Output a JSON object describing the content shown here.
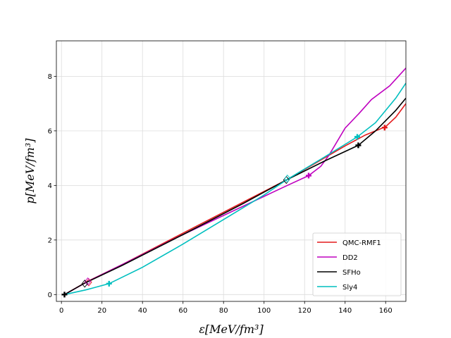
{
  "chart_data": {
    "type": "line",
    "xlabel": "ε[MeV/fm³]",
    "ylabel": "p[MeV/fm³]",
    "xlim": [
      -2.5,
      170
    ],
    "ylim": [
      -0.25,
      9.3
    ],
    "xticks": [
      0,
      20,
      40,
      60,
      80,
      100,
      120,
      140,
      160
    ],
    "yticks": [
      0,
      2,
      4,
      6,
      8
    ],
    "grid": true,
    "legend_position": "lower right",
    "series": [
      {
        "name": "QMC-RMF1",
        "color": "#e41a1c",
        "points": [
          [
            1.5,
            0.0
          ],
          [
            12,
            0.45
          ],
          [
            30,
            1.1
          ],
          [
            60,
            2.25
          ],
          [
            90,
            3.4
          ],
          [
            111,
            4.2
          ],
          [
            125,
            4.8
          ],
          [
            140,
            5.45
          ],
          [
            150,
            5.85
          ],
          [
            160,
            6.15
          ],
          [
            165,
            6.5
          ],
          [
            170,
            7.0
          ]
        ],
        "markers": [
          {
            "shape": "plus",
            "x": 159.5,
            "y": 6.12
          },
          {
            "shape": "diamond",
            "x": 13.5,
            "y": 0.45
          }
        ]
      },
      {
        "name": "DD2",
        "color": "#bf00bf",
        "points": [
          [
            1.5,
            0.0
          ],
          [
            13,
            0.48
          ],
          [
            30,
            1.1
          ],
          [
            60,
            2.2
          ],
          [
            90,
            3.25
          ],
          [
            110,
            3.95
          ],
          [
            122,
            4.36
          ],
          [
            128,
            4.7
          ],
          [
            132,
            5.1
          ],
          [
            140,
            6.1
          ],
          [
            147,
            6.65
          ],
          [
            153,
            7.15
          ],
          [
            162,
            7.65
          ],
          [
            170,
            8.3
          ]
        ],
        "markers": [
          {
            "shape": "plus",
            "x": 122,
            "y": 4.36
          },
          {
            "shape": "diamond",
            "x": 13,
            "y": 0.48
          }
        ]
      },
      {
        "name": "SFHo",
        "color": "#000000",
        "points": [
          [
            1.5,
            0.0
          ],
          [
            11,
            0.4
          ],
          [
            30,
            1.07
          ],
          [
            60,
            2.2
          ],
          [
            90,
            3.35
          ],
          [
            111,
            4.2
          ],
          [
            130,
            4.9
          ],
          [
            146.5,
            5.47
          ],
          [
            155,
            6.0
          ],
          [
            165,
            6.75
          ],
          [
            170,
            7.2
          ]
        ],
        "markers": [
          {
            "shape": "plus",
            "x": 146.5,
            "y": 5.47
          },
          {
            "shape": "plus",
            "x": 1.5,
            "y": 0.0
          },
          {
            "shape": "diamond",
            "x": 11.5,
            "y": 0.4
          },
          {
            "shape": "diamond",
            "x": 111,
            "y": 4.2
          }
        ]
      },
      {
        "name": "Sly4",
        "color": "#00bfbf",
        "points": [
          [
            1.5,
            0.0
          ],
          [
            12,
            0.17
          ],
          [
            23.5,
            0.4
          ],
          [
            40,
            1.0
          ],
          [
            60,
            1.85
          ],
          [
            80,
            2.75
          ],
          [
            100,
            3.65
          ],
          [
            111,
            4.2
          ],
          [
            130,
            5.05
          ],
          [
            146,
            5.78
          ],
          [
            155,
            6.3
          ],
          [
            165,
            7.2
          ],
          [
            170,
            7.75
          ]
        ],
        "markers": [
          {
            "shape": "plus",
            "x": 23.5,
            "y": 0.4
          },
          {
            "shape": "plus",
            "x": 146,
            "y": 5.78
          },
          {
            "shape": "diamond",
            "x": 111.5,
            "y": 4.25
          }
        ]
      }
    ]
  }
}
